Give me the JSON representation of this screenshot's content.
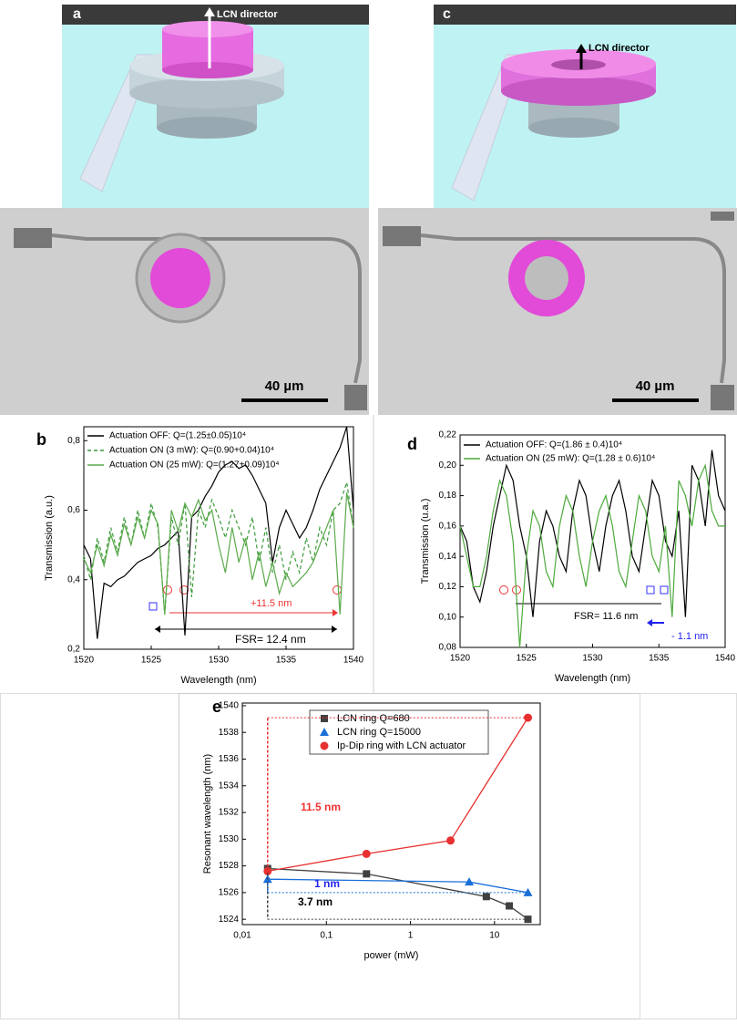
{
  "figure": {
    "panel_a": {
      "label": "a",
      "director": "LCN director"
    },
    "panel_c": {
      "label": "c",
      "director": "LCN director"
    },
    "scale_bars": [
      "40 µm",
      "40 µm"
    ]
  },
  "chart_data": [
    {
      "type": "line",
      "label": "b",
      "xlabel": "Wavelength (nm)",
      "ylabel": "Transmission (a.u.)",
      "x": [
        1520,
        1520.5,
        1521,
        1521.5,
        1522,
        1522.5,
        1523,
        1523.5,
        1524,
        1524.5,
        1525,
        1525.5,
        1526,
        1526.5,
        1527,
        1527.5,
        1528,
        1528.5,
        1529,
        1529.5,
        1530,
        1530.5,
        1531,
        1531.5,
        1532,
        1532.5,
        1533,
        1533.5,
        1534,
        1534.5,
        1535,
        1535.5,
        1536,
        1536.5,
        1537,
        1537.5,
        1538,
        1538.5,
        1539,
        1539.5,
        1540
      ],
      "series": [
        {
          "name": "Actuation OFF: Q=(1.25±0.05)10⁴",
          "color": "#000000",
          "dash": false,
          "values": [
            0.5,
            0.46,
            0.23,
            0.39,
            0.38,
            0.4,
            0.41,
            0.43,
            0.45,
            0.46,
            0.47,
            0.49,
            0.5,
            0.52,
            0.54,
            0.24,
            0.58,
            0.6,
            0.64,
            0.67,
            0.71,
            0.73,
            0.74,
            0.72,
            0.73,
            0.7,
            0.66,
            0.62,
            0.45,
            0.55,
            0.6,
            0.56,
            0.52,
            0.55,
            0.6,
            0.66,
            0.7,
            0.74,
            0.78,
            0.84,
            0.6
          ]
        },
        {
          "name": "Actuation ON (3 mW): Q=(0.90+0.04)10⁴",
          "color": "#3a9a3a",
          "dash": true,
          "values": [
            0.47,
            0.4,
            0.52,
            0.45,
            0.55,
            0.48,
            0.58,
            0.5,
            0.6,
            0.52,
            0.62,
            0.55,
            0.3,
            0.58,
            0.5,
            0.62,
            0.35,
            0.6,
            0.55,
            0.63,
            0.58,
            0.52,
            0.6,
            0.55,
            0.5,
            0.58,
            0.45,
            0.55,
            0.42,
            0.5,
            0.4,
            0.48,
            0.42,
            0.52,
            0.45,
            0.55,
            0.5,
            0.6,
            0.62,
            0.68,
            0.55
          ]
        },
        {
          "name": "Actuation ON (25 mW): Q=(1.27+0.09)10⁴",
          "color": "#5aaa4a",
          "dash": false,
          "values": [
            0.46,
            0.42,
            0.5,
            0.44,
            0.53,
            0.47,
            0.56,
            0.5,
            0.58,
            0.52,
            0.6,
            0.56,
            0.3,
            0.6,
            0.54,
            0.62,
            0.58,
            0.63,
            0.57,
            0.6,
            0.5,
            0.42,
            0.55,
            0.45,
            0.52,
            0.4,
            0.48,
            0.38,
            0.45,
            0.36,
            0.42,
            0.38,
            0.4,
            0.42,
            0.45,
            0.5,
            0.55,
            0.6,
            0.3,
            0.65,
            0.55
          ]
        }
      ],
      "xlim": [
        1520,
        1540
      ],
      "xticks": [
        1520,
        1525,
        1530,
        1535,
        1540
      ],
      "ylim": [
        0.2,
        0.84
      ],
      "yticks": [
        {
          "value": 0.2,
          "label": "0,2"
        },
        {
          "value": 0.4,
          "label": "0,4"
        },
        {
          "value": 0.6,
          "label": "0,6"
        },
        {
          "value": 0.8,
          "label": "0,8"
        }
      ],
      "annotations": [
        "+11.5 nm",
        "FSR= 12.4 nm"
      ]
    },
    {
      "type": "line",
      "label": "d",
      "xlabel": "Wavelength (nm)",
      "ylabel": "Transmission (u.a.)",
      "x": [
        1520,
        1520.5,
        1521,
        1521.5,
        1522,
        1522.5,
        1523,
        1523.5,
        1524,
        1524.5,
        1525,
        1525.5,
        1526,
        1526.5,
        1527,
        1527.5,
        1528,
        1528.5,
        1529,
        1529.5,
        1530,
        1530.5,
        1531,
        1531.5,
        1532,
        1532.5,
        1533,
        1533.5,
        1534,
        1534.5,
        1535,
        1535.5,
        1536,
        1536.5,
        1537,
        1537.5,
        1538,
        1538.5,
        1539,
        1539.5,
        1540
      ],
      "series": [
        {
          "name": "Actuation OFF: Q=(1.86 ± 0.4)10⁴",
          "color": "#000000",
          "dash": false,
          "values": [
            0.16,
            0.15,
            0.12,
            0.11,
            0.13,
            0.16,
            0.18,
            0.2,
            0.19,
            0.16,
            0.14,
            0.1,
            0.15,
            0.17,
            0.16,
            0.14,
            0.13,
            0.17,
            0.19,
            0.18,
            0.15,
            0.13,
            0.16,
            0.18,
            0.19,
            0.17,
            0.14,
            0.13,
            0.16,
            0.19,
            0.18,
            0.15,
            0.14,
            0.17,
            0.1,
            0.2,
            0.19,
            0.16,
            0.21,
            0.18,
            0.17
          ]
        },
        {
          "name": "Actuation ON (25 mW): Q=(1.28 ± 0.6)10⁴",
          "color": "#4caa3c",
          "dash": false,
          "values": [
            0.16,
            0.14,
            0.12,
            0.12,
            0.14,
            0.17,
            0.19,
            0.18,
            0.15,
            0.08,
            0.14,
            0.17,
            0.16,
            0.13,
            0.12,
            0.16,
            0.18,
            0.17,
            0.14,
            0.12,
            0.15,
            0.17,
            0.18,
            0.16,
            0.13,
            0.12,
            0.15,
            0.18,
            0.17,
            0.14,
            0.13,
            0.16,
            0.1,
            0.19,
            0.18,
            0.16,
            0.19,
            0.2,
            0.17,
            0.16,
            0.16
          ]
        }
      ],
      "xlim": [
        1520,
        1540
      ],
      "xticks": [
        1520,
        1525,
        1530,
        1535,
        1540
      ],
      "ylim": [
        0.08,
        0.22
      ],
      "yticks": [
        {
          "value": 0.08,
          "label": "0,08"
        },
        {
          "value": 0.1,
          "label": "0,10"
        },
        {
          "value": 0.12,
          "label": "0,12"
        },
        {
          "value": 0.14,
          "label": "0,14"
        },
        {
          "value": 0.16,
          "label": "0,16"
        },
        {
          "value": 0.18,
          "label": "0,18"
        },
        {
          "value": 0.2,
          "label": "0,20"
        },
        {
          "value": 0.22,
          "label": "0,22"
        }
      ],
      "annotations": [
        "FSR= 11.6 nm",
        "- 1.1 nm"
      ]
    },
    {
      "type": "scatter",
      "label": "e",
      "xlabel": "power (mW)",
      "ylabel": "Resonant wavelength (nm)",
      "xscale": "log",
      "series": [
        {
          "name": "LCN ring Q=680",
          "color": "#404040",
          "marker": "square",
          "x": [
            0.02,
            0.3,
            8,
            15,
            25
          ],
          "values": [
            1527.8,
            1527.4,
            1525.7,
            1525.0,
            1524.0
          ]
        },
        {
          "name": "LCN ring Q=15000",
          "color": "#1a6fd8",
          "marker": "triangle",
          "x": [
            0.02,
            5,
            25
          ],
          "values": [
            1527.0,
            1526.8,
            1526.0
          ]
        },
        {
          "name": "Ip-Dip ring with LCN actuator",
          "color": "#e83030",
          "marker": "circle",
          "x": [
            0.02,
            0.3,
            3,
            25
          ],
          "values": [
            1527.6,
            1528.9,
            1529.9,
            1539.1
          ]
        }
      ],
      "xlim": [
        0.01,
        35
      ],
      "xticks": [
        {
          "value": 0.01,
          "label": "0,01"
        },
        {
          "value": 0.1,
          "label": "0,1"
        },
        1,
        10
      ],
      "ylim": [
        1523.6,
        1540.2
      ],
      "yticks": [
        1524,
        1526,
        1528,
        1530,
        1532,
        1534,
        1536,
        1538,
        1540
      ],
      "annotations": [
        "11.5 nm",
        "1 nm",
        "3.7 nm"
      ]
    }
  ]
}
